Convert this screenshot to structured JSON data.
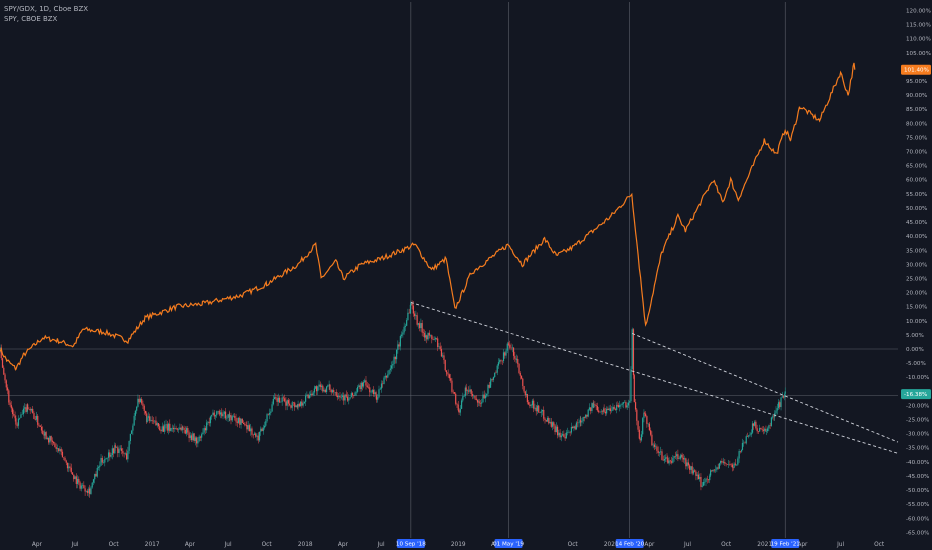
{
  "legend": {
    "main_symbol": "SPY/GDX, 1D, Cboe BZX",
    "compare_symbol": "SPY, CBOE BZX"
  },
  "colors": {
    "background": "#131722",
    "spy_line": "#f57c1f",
    "candle_up": "#26a69a",
    "candle_down": "#ef5350",
    "trendline": "#d1d4dc",
    "crosshair": "#5d606b",
    "date_badge": "#2962ff",
    "spy_badge": "#f57c1f",
    "ratio_badge": "#26a69a"
  },
  "badges": {
    "spy_last": "101.40%",
    "ratio_last": "-16.38%"
  },
  "chart_data": {
    "type": "line",
    "yaxis_unit": "%",
    "ylim": [
      -67,
      123
    ],
    "yticks": [
      "120.00%",
      "115.00%",
      "110.00%",
      "105.00%",
      "100.00%",
      "95.00%",
      "90.00%",
      "85.00%",
      "80.00%",
      "75.00%",
      "70.00%",
      "65.00%",
      "60.00%",
      "55.00%",
      "50.00%",
      "45.00%",
      "40.00%",
      "35.00%",
      "30.00%",
      "25.00%",
      "20.00%",
      "15.00%",
      "10.00%",
      "5.00%",
      "0.00%",
      "-5.00%",
      "-10.00%",
      "-15.00%",
      "-20.00%",
      "-25.00%",
      "-30.00%",
      "-35.00%",
      "-40.00%",
      "-45.00%",
      "-50.00%",
      "-55.00%",
      "-60.00%",
      "-65.00%"
    ],
    "xlim": [
      "2016-01-04",
      "2021-11-15"
    ],
    "xticks": [
      {
        "date": "2016-04-01",
        "label": "Apr"
      },
      {
        "date": "2016-07-01",
        "label": "Jul"
      },
      {
        "date": "2016-10-01",
        "label": "Oct"
      },
      {
        "date": "2017-01-01",
        "label": "2017"
      },
      {
        "date": "2017-04-01",
        "label": "Apr"
      },
      {
        "date": "2017-07-01",
        "label": "Jul"
      },
      {
        "date": "2017-10-01",
        "label": "Oct"
      },
      {
        "date": "2018-01-01",
        "label": "2018"
      },
      {
        "date": "2018-04-01",
        "label": "Apr"
      },
      {
        "date": "2018-07-01",
        "label": "Jul"
      },
      {
        "date": "2019-01-01",
        "label": "2019"
      },
      {
        "date": "2019-04-01",
        "label": "Apr"
      },
      {
        "date": "2019-10-01",
        "label": "Oct"
      },
      {
        "date": "2020-01-01",
        "label": "2020"
      },
      {
        "date": "2020-04-01",
        "label": "Apr"
      },
      {
        "date": "2020-07-01",
        "label": "Jul"
      },
      {
        "date": "2020-10-01",
        "label": "Oct"
      },
      {
        "date": "2021-01-01",
        "label": "2021"
      },
      {
        "date": "2021-04-01",
        "label": "Apr"
      },
      {
        "date": "2021-07-01",
        "label": "Jul"
      },
      {
        "date": "2021-10-01",
        "label": "Oct"
      }
    ],
    "date_markers": [
      {
        "date": "2018-09-10",
        "label": "10 Sep '18"
      },
      {
        "date": "2019-05-01",
        "label": "01 May '19"
      },
      {
        "date": "2020-02-14",
        "label": "14 Feb '20"
      },
      {
        "date": "2021-02-19",
        "label": "19 Feb '21"
      }
    ],
    "series": [
      {
        "name": "SPY, CBOE BZX",
        "kind": "line",
        "points": [
          [
            "2016-01-04",
            0
          ],
          [
            "2016-01-20",
            -4
          ],
          [
            "2016-02-11",
            -7
          ],
          [
            "2016-03-01",
            -2
          ],
          [
            "2016-04-15",
            4
          ],
          [
            "2016-05-20",
            3
          ],
          [
            "2016-06-27",
            1
          ],
          [
            "2016-07-20",
            7
          ],
          [
            "2016-09-09",
            6
          ],
          [
            "2016-11-04",
            3
          ],
          [
            "2016-12-15",
            11
          ],
          [
            "2017-03-01",
            15
          ],
          [
            "2017-05-01",
            16
          ],
          [
            "2017-08-01",
            19
          ],
          [
            "2017-10-01",
            23
          ],
          [
            "2017-12-15",
            30
          ],
          [
            "2018-01-26",
            37
          ],
          [
            "2018-02-08",
            25
          ],
          [
            "2018-03-15",
            31
          ],
          [
            "2018-04-02",
            25
          ],
          [
            "2018-05-15",
            30
          ],
          [
            "2018-07-01",
            32
          ],
          [
            "2018-09-20",
            37
          ],
          [
            "2018-10-29",
            28
          ],
          [
            "2018-12-03",
            32
          ],
          [
            "2018-12-24",
            14
          ],
          [
            "2019-02-01",
            27
          ],
          [
            "2019-04-30",
            37
          ],
          [
            "2019-06-03",
            30
          ],
          [
            "2019-07-26",
            39
          ],
          [
            "2019-08-23",
            33
          ],
          [
            "2019-10-01",
            36
          ],
          [
            "2019-12-31",
            47
          ],
          [
            "2020-02-19",
            55
          ],
          [
            "2020-03-23",
            8
          ],
          [
            "2020-04-30",
            34
          ],
          [
            "2020-06-08",
            47
          ],
          [
            "2020-06-26",
            42
          ],
          [
            "2020-08-31",
            60
          ],
          [
            "2020-09-23",
            52
          ],
          [
            "2020-10-12",
            60
          ],
          [
            "2020-10-30",
            53
          ],
          [
            "2020-12-31",
            74
          ],
          [
            "2021-01-29",
            69
          ],
          [
            "2021-02-19",
            78
          ],
          [
            "2021-03-04",
            74
          ],
          [
            "2021-03-26",
            86
          ],
          [
            "2021-05-12",
            81
          ],
          [
            "2021-07-01",
            98
          ],
          [
            "2021-07-19",
            90
          ],
          [
            "2021-08-02",
            101
          ],
          [
            "2021-08-04",
            99
          ]
        ]
      },
      {
        "name": "SPY/GDX, 1D, Cboe BZX",
        "kind": "candle",
        "points": [
          [
            "2016-01-04",
            0
          ],
          [
            "2016-01-25",
            -18
          ],
          [
            "2016-02-11",
            -27
          ],
          [
            "2016-03-10",
            -20
          ],
          [
            "2016-04-20",
            -30
          ],
          [
            "2016-06-01",
            -38
          ],
          [
            "2016-07-10",
            -48
          ],
          [
            "2016-08-05",
            -50
          ],
          [
            "2016-09-01",
            -40
          ],
          [
            "2016-10-05",
            -35
          ],
          [
            "2016-11-01",
            -38
          ],
          [
            "2016-11-28",
            -17
          ],
          [
            "2016-12-20",
            -25
          ],
          [
            "2017-01-25",
            -28
          ],
          [
            "2017-03-15",
            -28
          ],
          [
            "2017-04-20",
            -33
          ],
          [
            "2017-06-01",
            -22
          ],
          [
            "2017-07-05",
            -24
          ],
          [
            "2017-08-15",
            -27
          ],
          [
            "2017-09-08",
            -32
          ],
          [
            "2017-10-20",
            -18
          ],
          [
            "2017-12-15",
            -20
          ],
          [
            "2018-01-25",
            -14
          ],
          [
            "2018-03-01",
            -14
          ],
          [
            "2018-04-15",
            -18
          ],
          [
            "2018-05-20",
            -12
          ],
          [
            "2018-06-20",
            -17
          ],
          [
            "2018-08-01",
            -4
          ],
          [
            "2018-09-10",
            16
          ],
          [
            "2018-09-25",
            10
          ],
          [
            "2018-10-15",
            5
          ],
          [
            "2018-11-10",
            3
          ],
          [
            "2018-12-05",
            -8
          ],
          [
            "2019-01-03",
            -22
          ],
          [
            "2019-01-20",
            -14
          ],
          [
            "2019-02-20",
            -20
          ],
          [
            "2019-03-20",
            -12
          ],
          [
            "2019-05-01",
            2
          ],
          [
            "2019-05-20",
            -4
          ],
          [
            "2019-06-15",
            -18
          ],
          [
            "2019-07-15",
            -22
          ],
          [
            "2019-08-20",
            -28
          ],
          [
            "2019-09-10",
            -32
          ],
          [
            "2019-10-20",
            -25
          ],
          [
            "2019-11-20",
            -20
          ],
          [
            "2019-12-15",
            -22
          ],
          [
            "2020-01-15",
            -20
          ],
          [
            "2020-02-14",
            -19
          ],
          [
            "2020-02-20",
            6
          ],
          [
            "2020-02-25",
            -20
          ],
          [
            "2020-03-10",
            -32
          ],
          [
            "2020-03-20",
            -22
          ],
          [
            "2020-04-10",
            -35
          ],
          [
            "2020-05-15",
            -40
          ],
          [
            "2020-06-15",
            -38
          ],
          [
            "2020-07-15",
            -44
          ],
          [
            "2020-08-05",
            -48
          ],
          [
            "2020-08-25",
            -44
          ],
          [
            "2020-09-25",
            -40
          ],
          [
            "2020-10-20",
            -42
          ],
          [
            "2020-11-09",
            -34
          ],
          [
            "2020-12-05",
            -27
          ],
          [
            "2021-01-05",
            -30
          ],
          [
            "2021-01-25",
            -22
          ],
          [
            "2021-02-19",
            -16
          ]
        ]
      }
    ],
    "trendlines": [
      {
        "from": [
          "2018-09-10",
          16.5
        ],
        "to": [
          "2021-11-15",
          -37
        ]
      },
      {
        "from": [
          "2020-02-20",
          5.5
        ],
        "to": [
          "2021-11-15",
          -33
        ]
      }
    ],
    "hlines": [
      0,
      -16.4
    ]
  }
}
